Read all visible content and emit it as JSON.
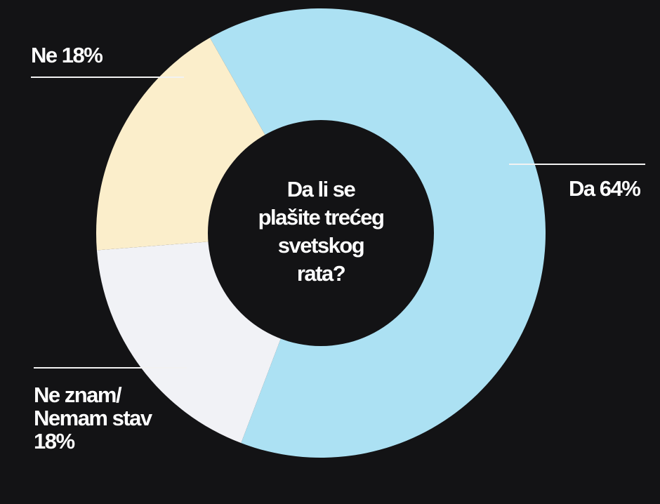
{
  "chart_data": {
    "type": "pie",
    "variant": "donut",
    "title": "Da li se plašite trećeg svetskog rata?",
    "categories": [
      "Da",
      "Ne",
      "Ne znam/Nemam stav"
    ],
    "values": [
      64,
      18,
      18
    ],
    "unit": "%",
    "colors": [
      "#ace1f3",
      "#fbeecb",
      "#f1f2f6"
    ],
    "legend": "none (direct labels with leader lines)"
  },
  "center_question": "Da li se\nplašite trećeg\nsvetskog\nrata?",
  "labels": {
    "da": "Da 64%",
    "ne": "Ne 18%",
    "neznam": "Ne znam/\nNemam stav\n18%"
  },
  "colors": {
    "background": "#131315",
    "hole": "#131315",
    "text": "#ffffff"
  }
}
